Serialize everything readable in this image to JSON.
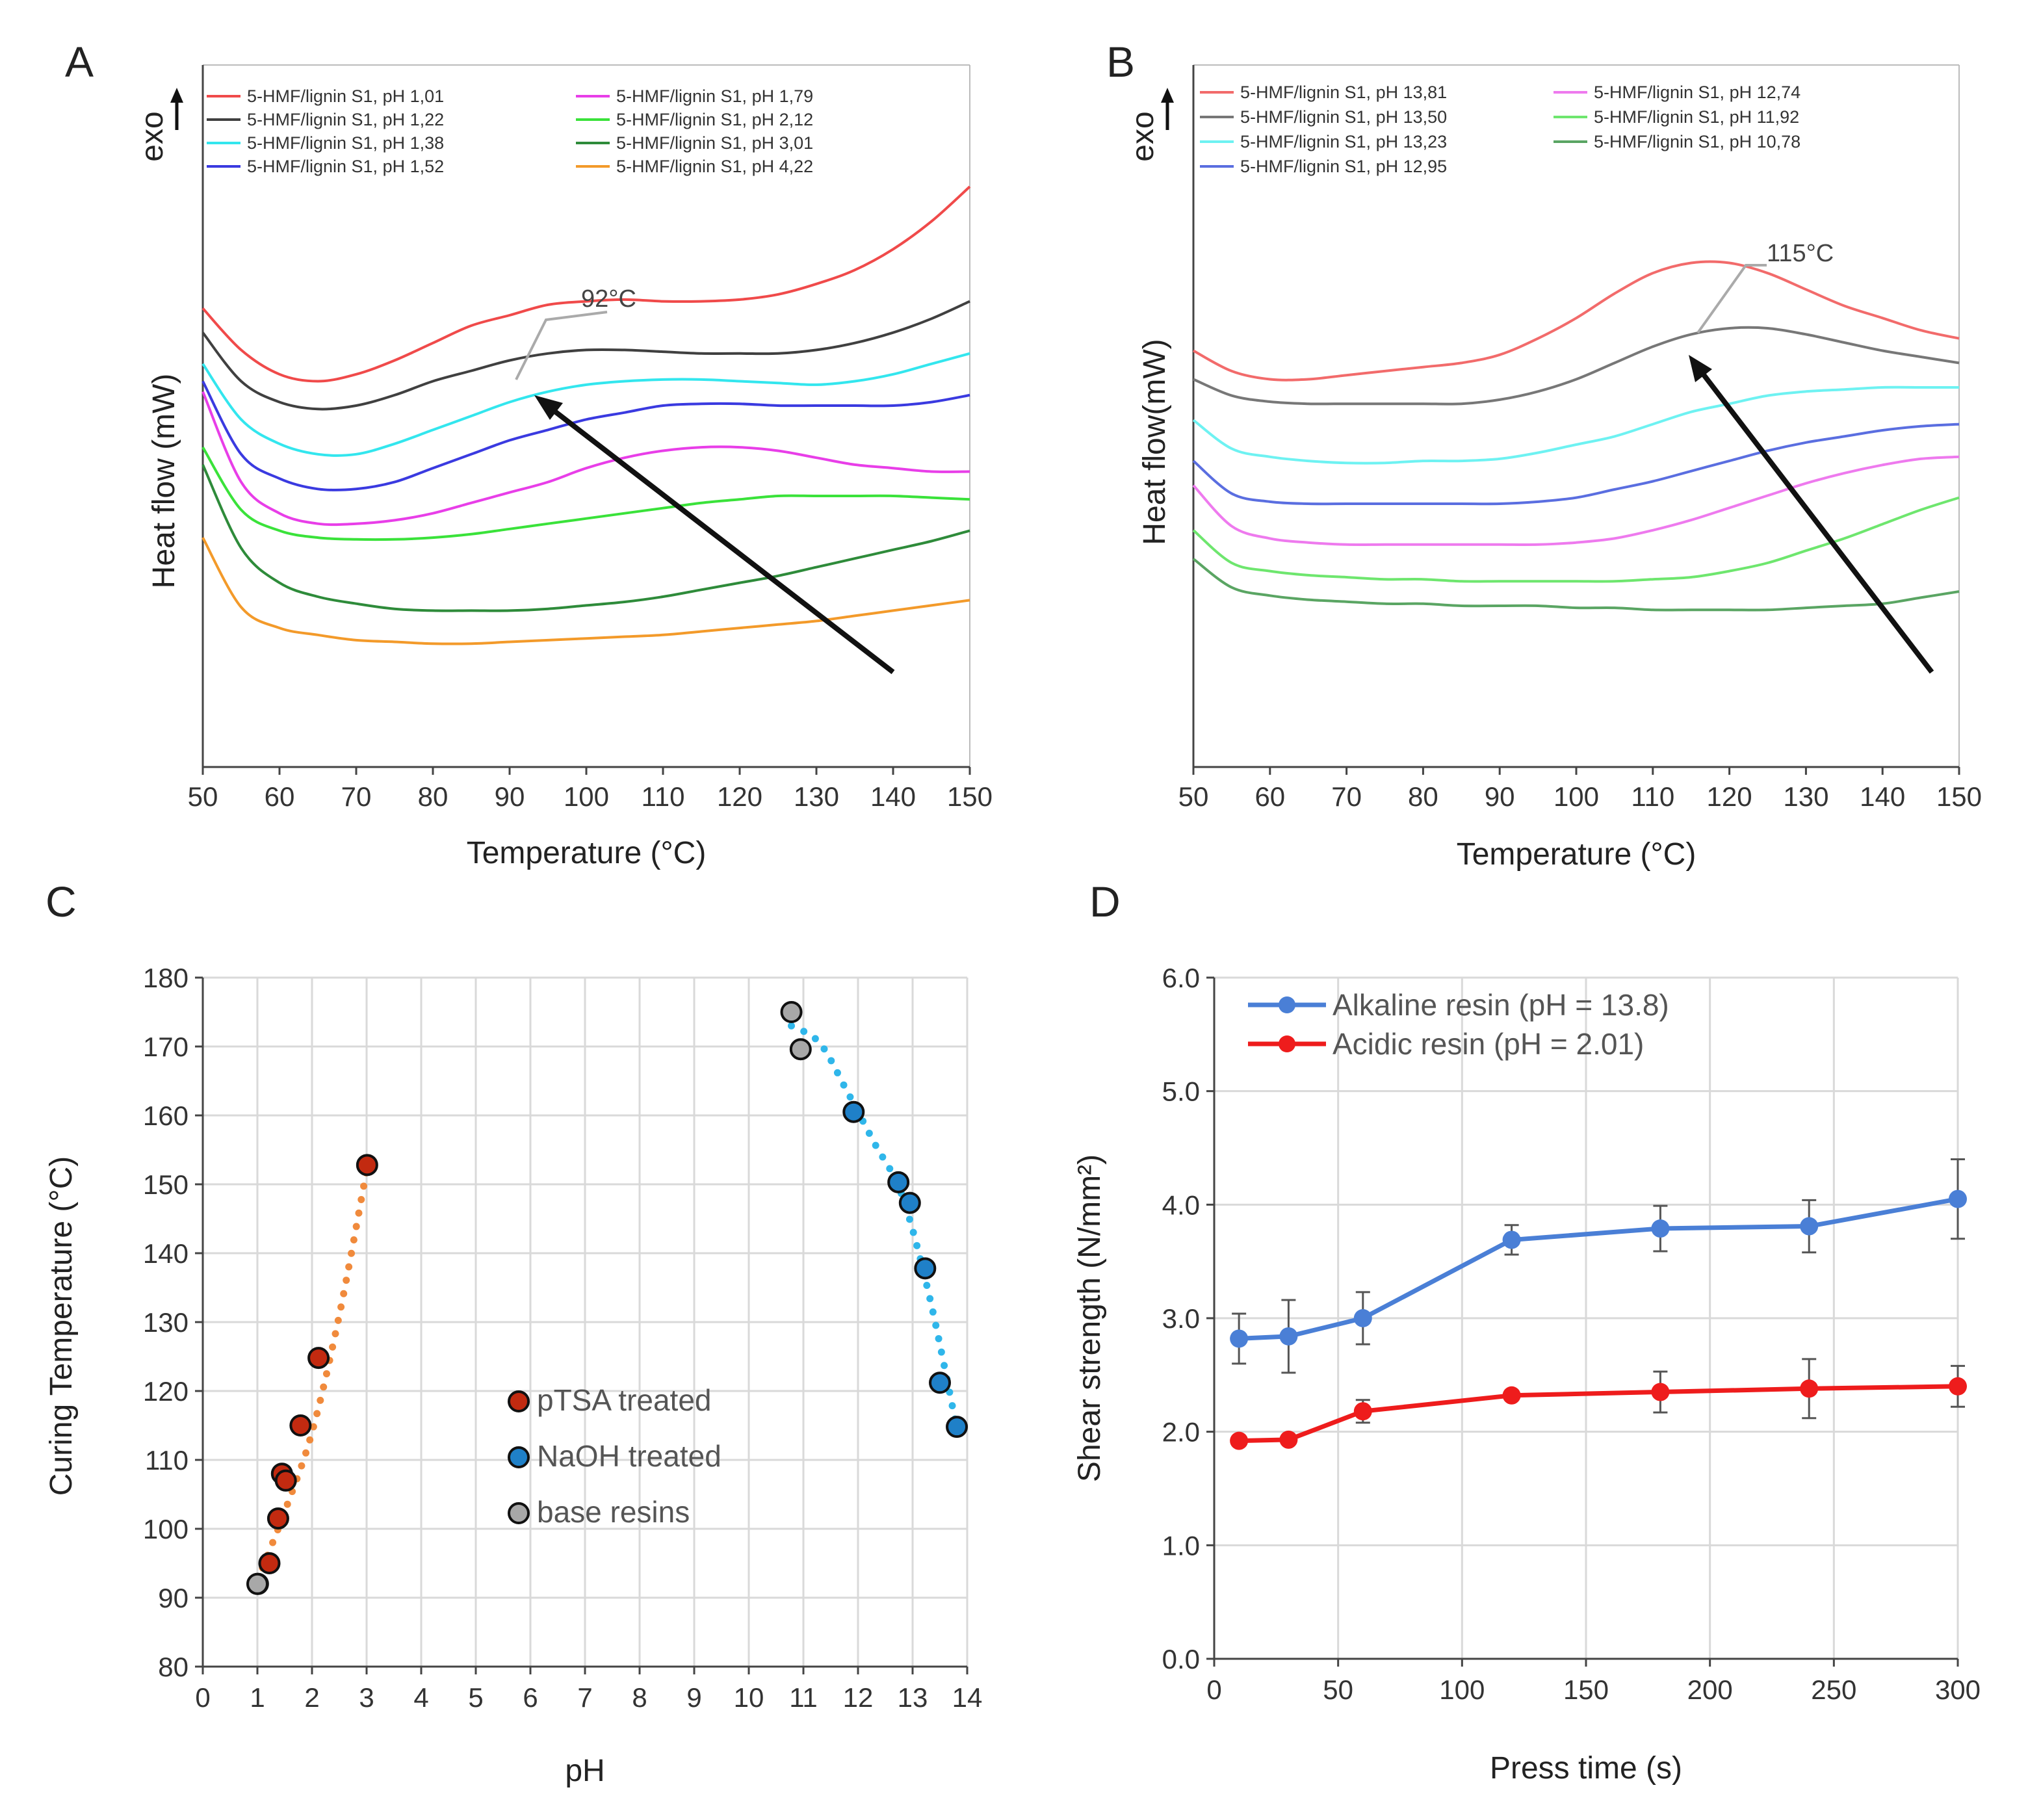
{
  "chart_data": [
    {
      "panel": "A",
      "type": "line",
      "xlabel": "Temperature (°C)",
      "ylabel": "Heat flow (mW)",
      "direction_label": "exo",
      "xlim": [
        50,
        150
      ],
      "xticks": [
        "50",
        "60",
        "70",
        "80",
        "90",
        "100",
        "110",
        "120",
        "130",
        "140",
        "150"
      ],
      "annotation": "92°C",
      "legend_columns": 2,
      "series": [
        {
          "name": "5-HMF/lignin S1, pH 1,01",
          "color": "#f04a4a",
          "x": [
            50,
            55,
            60,
            65,
            70,
            75,
            80,
            85,
            90,
            95,
            100,
            105,
            110,
            115,
            120,
            125,
            130,
            135,
            140,
            145,
            150
          ],
          "y": [
            15.5,
            14.3,
            13.6,
            13.4,
            13.6,
            14.0,
            14.5,
            15.0,
            15.3,
            15.6,
            15.7,
            15.75,
            15.7,
            15.7,
            15.75,
            15.9,
            16.2,
            16.6,
            17.2,
            18.0,
            19.0
          ]
        },
        {
          "name": "5-HMF/lignin S1, pH 1,22",
          "color": "#404040",
          "x": [
            50,
            55,
            60,
            65,
            70,
            75,
            80,
            85,
            90,
            95,
            100,
            105,
            110,
            115,
            120,
            125,
            130,
            135,
            140,
            145,
            150
          ],
          "y": [
            14.8,
            13.4,
            12.8,
            12.6,
            12.7,
            13.0,
            13.4,
            13.7,
            14.0,
            14.2,
            14.3,
            14.3,
            14.25,
            14.2,
            14.2,
            14.2,
            14.3,
            14.5,
            14.8,
            15.2,
            15.7
          ]
        },
        {
          "name": "5-HMF/lignin S1, pH 1,38",
          "color": "#33e6ee",
          "x": [
            50,
            55,
            60,
            65,
            70,
            75,
            80,
            85,
            90,
            95,
            100,
            105,
            110,
            115,
            120,
            125,
            130,
            135,
            140,
            145,
            150
          ],
          "y": [
            13.9,
            12.3,
            11.6,
            11.3,
            11.3,
            11.6,
            12.0,
            12.4,
            12.8,
            13.1,
            13.3,
            13.4,
            13.45,
            13.45,
            13.4,
            13.35,
            13.3,
            13.4,
            13.6,
            13.9,
            14.2
          ]
        },
        {
          "name": "5-HMF/lignin S1, pH 1,52",
          "color": "#3a3ae0",
          "x": [
            50,
            55,
            60,
            65,
            70,
            75,
            80,
            85,
            90,
            95,
            100,
            105,
            110,
            115,
            120,
            125,
            130,
            135,
            140,
            145,
            150
          ],
          "y": [
            13.4,
            11.3,
            10.6,
            10.3,
            10.3,
            10.5,
            10.9,
            11.3,
            11.7,
            12.0,
            12.3,
            12.5,
            12.7,
            12.75,
            12.75,
            12.7,
            12.7,
            12.7,
            12.7,
            12.8,
            13.0
          ]
        },
        {
          "name": "5-HMF/lignin S1, pH 1,79",
          "color": "#e83ee8",
          "x": [
            50,
            55,
            60,
            65,
            70,
            75,
            80,
            85,
            90,
            95,
            100,
            105,
            110,
            115,
            120,
            125,
            130,
            135,
            140,
            145,
            150
          ],
          "y": [
            13.1,
            10.5,
            9.6,
            9.3,
            9.3,
            9.4,
            9.6,
            9.9,
            10.2,
            10.5,
            10.9,
            11.2,
            11.4,
            11.5,
            11.5,
            11.4,
            11.2,
            11.0,
            10.9,
            10.8,
            10.8
          ]
        },
        {
          "name": "5-HMF/lignin S1, pH 2,12",
          "color": "#3ae23a",
          "x": [
            50,
            55,
            60,
            65,
            70,
            75,
            80,
            85,
            90,
            95,
            100,
            105,
            110,
            115,
            120,
            125,
            130,
            135,
            140,
            145,
            150
          ],
          "y": [
            11.5,
            9.7,
            9.1,
            8.9,
            8.85,
            8.85,
            8.9,
            9.0,
            9.15,
            9.3,
            9.45,
            9.6,
            9.75,
            9.9,
            10.0,
            10.1,
            10.1,
            10.1,
            10.1,
            10.05,
            10.0
          ]
        },
        {
          "name": "5-HMF/lignin S1, pH 3,01",
          "color": "#2e8b3a",
          "x": [
            50,
            55,
            60,
            65,
            70,
            75,
            80,
            85,
            90,
            95,
            100,
            105,
            110,
            115,
            120,
            125,
            130,
            135,
            140,
            145,
            150
          ],
          "y": [
            11.0,
            8.6,
            7.6,
            7.2,
            7.0,
            6.85,
            6.8,
            6.8,
            6.8,
            6.85,
            6.95,
            7.05,
            7.2,
            7.4,
            7.6,
            7.8,
            8.05,
            8.3,
            8.55,
            8.8,
            9.1
          ]
        },
        {
          "name": "5-HMF/lignin S1, pH 4,22",
          "color": "#f39a2a",
          "x": [
            50,
            55,
            60,
            65,
            70,
            75,
            80,
            85,
            90,
            95,
            100,
            105,
            110,
            115,
            120,
            125,
            130,
            135,
            140,
            145,
            150
          ],
          "y": [
            8.9,
            6.9,
            6.3,
            6.1,
            5.95,
            5.9,
            5.85,
            5.85,
            5.9,
            5.95,
            6.0,
            6.05,
            6.1,
            6.2,
            6.3,
            6.4,
            6.5,
            6.65,
            6.8,
            6.95,
            7.1
          ]
        }
      ]
    },
    {
      "panel": "B",
      "type": "line",
      "xlabel": "Temperature (°C)",
      "ylabel": "Heat flow(mW)",
      "direction_label": "exo",
      "xlim": [
        50,
        150
      ],
      "xticks": [
        "50",
        "60",
        "70",
        "80",
        "90",
        "100",
        "110",
        "120",
        "130",
        "140",
        "150"
      ],
      "annotation": "115°C",
      "legend_columns": 2,
      "series": [
        {
          "name": "5-HMF/lignin S1, pH 13,81",
          "color": "#f26b6b",
          "x": [
            50,
            55,
            60,
            65,
            70,
            75,
            80,
            85,
            90,
            95,
            100,
            105,
            110,
            115,
            120,
            125,
            130,
            135,
            140,
            145,
            150
          ],
          "y": [
            13.2,
            12.7,
            12.5,
            12.5,
            12.6,
            12.7,
            12.8,
            12.9,
            13.1,
            13.5,
            14.0,
            14.6,
            15.1,
            15.35,
            15.35,
            15.1,
            14.7,
            14.3,
            14.0,
            13.7,
            13.5
          ]
        },
        {
          "name": "5-HMF/lignin S1, pH 13,50",
          "color": "#777777",
          "x": [
            50,
            55,
            60,
            65,
            70,
            75,
            80,
            85,
            90,
            95,
            100,
            105,
            110,
            115,
            120,
            125,
            130,
            135,
            140,
            145,
            150
          ],
          "y": [
            12.5,
            12.1,
            11.95,
            11.9,
            11.9,
            11.9,
            11.9,
            11.9,
            12.0,
            12.2,
            12.5,
            12.9,
            13.3,
            13.6,
            13.75,
            13.75,
            13.6,
            13.4,
            13.2,
            13.05,
            12.9
          ]
        },
        {
          "name": "5-HMF/lignin S1, pH 13,23",
          "color": "#6ef2f2",
          "x": [
            50,
            55,
            60,
            65,
            70,
            75,
            80,
            85,
            90,
            95,
            100,
            105,
            110,
            115,
            120,
            125,
            130,
            135,
            140,
            145,
            150
          ],
          "y": [
            11.5,
            10.8,
            10.6,
            10.5,
            10.45,
            10.45,
            10.5,
            10.5,
            10.55,
            10.7,
            10.9,
            11.1,
            11.4,
            11.7,
            11.9,
            12.1,
            12.2,
            12.25,
            12.3,
            12.3,
            12.3
          ]
        },
        {
          "name": "5-HMF/lignin S1, pH 12,95",
          "color": "#5a6ee0",
          "x": [
            50,
            55,
            60,
            65,
            70,
            75,
            80,
            85,
            90,
            95,
            100,
            105,
            110,
            115,
            120,
            125,
            130,
            135,
            140,
            145,
            150
          ],
          "y": [
            10.5,
            9.7,
            9.5,
            9.45,
            9.45,
            9.45,
            9.45,
            9.45,
            9.45,
            9.5,
            9.6,
            9.8,
            10.0,
            10.25,
            10.5,
            10.75,
            10.95,
            11.1,
            11.25,
            11.35,
            11.4
          ]
        },
        {
          "name": "5-HMF/lignin S1, pH 12,74",
          "color": "#ee7aee",
          "x": [
            50,
            55,
            60,
            65,
            70,
            75,
            80,
            85,
            90,
            95,
            100,
            105,
            110,
            115,
            120,
            125,
            130,
            135,
            140,
            145,
            150
          ],
          "y": [
            9.9,
            8.9,
            8.6,
            8.5,
            8.45,
            8.45,
            8.45,
            8.45,
            8.45,
            8.45,
            8.5,
            8.6,
            8.8,
            9.05,
            9.35,
            9.65,
            9.95,
            10.2,
            10.4,
            10.55,
            10.6
          ]
        },
        {
          "name": "5-HMF/lignin S1, pH 11,92",
          "color": "#6ee66e",
          "x": [
            50,
            55,
            60,
            65,
            70,
            75,
            80,
            85,
            90,
            95,
            100,
            105,
            110,
            115,
            120,
            125,
            130,
            135,
            140,
            145,
            150
          ],
          "y": [
            8.8,
            8.0,
            7.8,
            7.7,
            7.65,
            7.6,
            7.6,
            7.55,
            7.55,
            7.55,
            7.55,
            7.55,
            7.6,
            7.65,
            7.8,
            8.0,
            8.3,
            8.6,
            8.95,
            9.3,
            9.6
          ]
        },
        {
          "name": "5-HMF/lignin S1, pH 10,78",
          "color": "#5aa563",
          "x": [
            50,
            55,
            60,
            65,
            70,
            75,
            80,
            85,
            90,
            95,
            100,
            105,
            110,
            115,
            120,
            125,
            130,
            135,
            140,
            145,
            150
          ],
          "y": [
            8.1,
            7.4,
            7.2,
            7.1,
            7.05,
            7.0,
            7.0,
            6.95,
            6.95,
            6.95,
            6.9,
            6.9,
            6.85,
            6.85,
            6.85,
            6.85,
            6.9,
            6.95,
            7.0,
            7.15,
            7.3
          ]
        }
      ]
    },
    {
      "panel": "C",
      "type": "scatter",
      "xlabel": "pH",
      "ylabel": "Curing Temperature (°C)",
      "xlim": [
        0,
        14
      ],
      "ylim": [
        80,
        180
      ],
      "xticks": [
        "0",
        "1",
        "2",
        "3",
        "4",
        "5",
        "6",
        "7",
        "8",
        "9",
        "10",
        "11",
        "12",
        "13",
        "14"
      ],
      "yticks": [
        "80",
        "90",
        "100",
        "110",
        "120",
        "130",
        "140",
        "150",
        "160",
        "170",
        "180"
      ],
      "legend": [
        "pTSA treated",
        "NaOH treated",
        "base resins"
      ],
      "series": [
        {
          "name": "pTSA treated",
          "color": "#c22a10",
          "x": [
            1.01,
            1.22,
            1.38,
            1.45,
            1.52,
            1.79,
            2.12,
            3.01
          ],
          "y": [
            92,
            95,
            101.5,
            108,
            107,
            115,
            124.8,
            152.8
          ]
        },
        {
          "name": "NaOH treated",
          "color": "#1f80c8",
          "x": [
            11.92,
            12.74,
            12.95,
            13.23,
            13.5,
            13.81
          ],
          "y": [
            160.5,
            150.3,
            147.3,
            137.8,
            121.2,
            114.8
          ]
        },
        {
          "name": "base resins",
          "color": "#a8a8a8",
          "x": [
            1.0,
            10.78,
            10.95
          ],
          "y": [
            92,
            175,
            169.6
          ]
        }
      ],
      "trendlines": [
        {
          "name": "acid trend",
          "color": "#f08a3c",
          "x": [
            1.0,
            1.5,
            2.0,
            2.5,
            3.0
          ],
          "y": [
            92.5,
            102.5,
            114.0,
            131.0,
            152.0
          ]
        },
        {
          "name": "alkaline trend",
          "color": "#2fb6ea",
          "x": [
            10.78,
            11.3,
            11.8,
            12.3,
            12.8,
            13.3,
            13.8
          ],
          "y": [
            173.0,
            170.5,
            163.5,
            156.0,
            148.5,
            134.0,
            115.0
          ]
        }
      ]
    },
    {
      "panel": "D",
      "type": "line",
      "xlabel": "Press time (s)",
      "ylabel": "Shear strength (N/mm²)",
      "xlim": [
        0,
        300
      ],
      "ylim": [
        0,
        6
      ],
      "xticks": [
        "0",
        "50",
        "100",
        "150",
        "200",
        "250",
        "300"
      ],
      "yticks": [
        "0.0",
        "1.0",
        "2.0",
        "3.0",
        "4.0",
        "5.0",
        "6.0"
      ],
      "series": [
        {
          "name": "Alkaline resin (pH = 13.8)",
          "color": "#4a7fd6",
          "x": [
            10,
            30,
            60,
            120,
            180,
            240,
            300
          ],
          "y": [
            2.82,
            2.84,
            3.0,
            3.69,
            3.79,
            3.81,
            4.05
          ],
          "err": [
            0.22,
            0.32,
            0.23,
            0.13,
            0.2,
            0.23,
            0.35
          ]
        },
        {
          "name": "Acidic resin (pH = 2.01)",
          "color": "#ee1c1c",
          "x": [
            10,
            30,
            60,
            120,
            180,
            240,
            300
          ],
          "y": [
            1.92,
            1.93,
            2.18,
            2.32,
            2.35,
            2.38,
            2.4
          ],
          "err": [
            0.03,
            0.03,
            0.1,
            0.04,
            0.18,
            0.26,
            0.18
          ]
        }
      ]
    }
  ]
}
